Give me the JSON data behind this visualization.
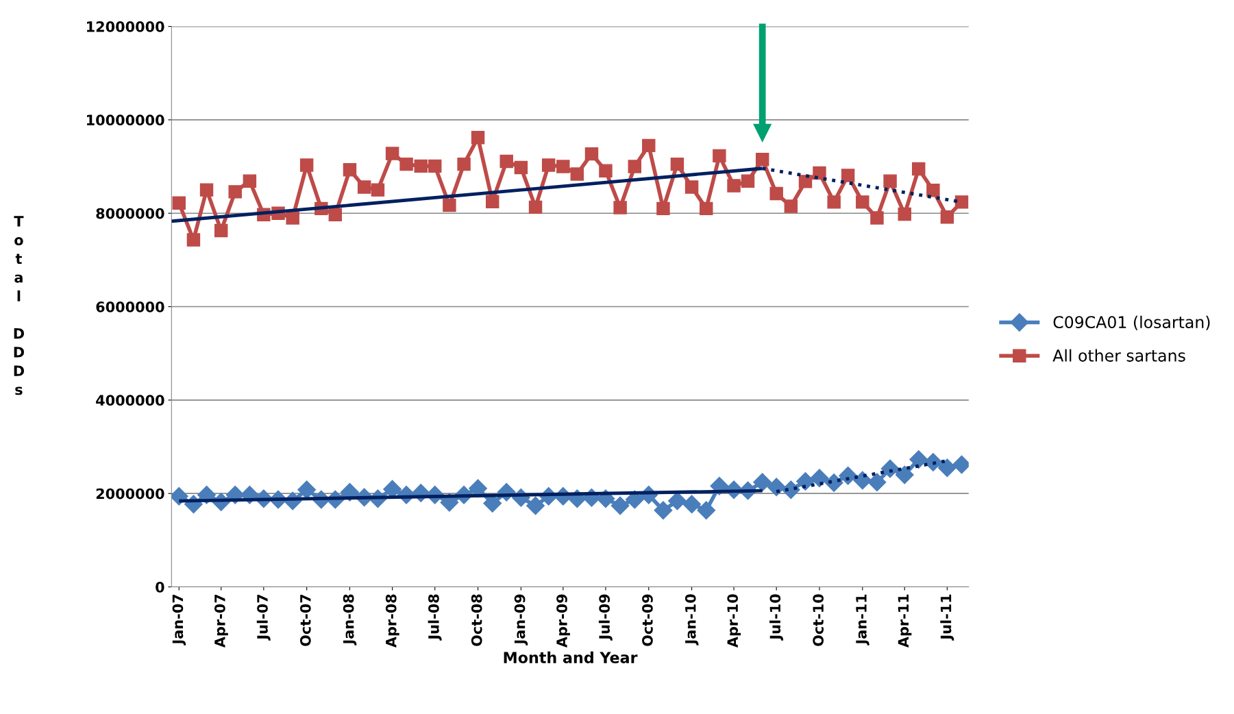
{
  "chart_data": {
    "type": "line",
    "xlabel": "Month and Year",
    "ylabel": "Total DDDs",
    "x": [
      "2007-01",
      "2007-02",
      "2007-03",
      "2007-04",
      "2007-05",
      "2007-06",
      "2007-07",
      "2007-08",
      "2007-09",
      "2007-10",
      "2007-11",
      "2007-12",
      "2008-01",
      "2008-02",
      "2008-03",
      "2008-04",
      "2008-05",
      "2008-06",
      "2008-07",
      "2008-08",
      "2008-09",
      "2008-10",
      "2008-11",
      "2008-12",
      "2009-01",
      "2009-02",
      "2009-03",
      "2009-04",
      "2009-05",
      "2009-06",
      "2009-07",
      "2009-08",
      "2009-09",
      "2009-10",
      "2009-11",
      "2009-12",
      "2010-01",
      "2010-02",
      "2010-03",
      "2010-04",
      "2010-05",
      "2010-06",
      "2010-07",
      "2010-08",
      "2010-09",
      "2010-10",
      "2010-11",
      "2010-12",
      "2011-01",
      "2011-02",
      "2011-03",
      "2011-04",
      "2011-05",
      "2011-06",
      "2011-07",
      "2011-08"
    ],
    "series": [
      {
        "name": "C09CA01 (losartan)",
        "color": "#4a7ebb",
        "marker": "diamond",
        "values": [
          1940000,
          1770000,
          1970000,
          1820000,
          1970000,
          1970000,
          1890000,
          1870000,
          1840000,
          2080000,
          1870000,
          1870000,
          2030000,
          1920000,
          1890000,
          2090000,
          1970000,
          2010000,
          1970000,
          1810000,
          1970000,
          2110000,
          1790000,
          2030000,
          1910000,
          1740000,
          1940000,
          1940000,
          1890000,
          1910000,
          1890000,
          1740000,
          1870000,
          1970000,
          1640000,
          1840000,
          1770000,
          1640000,
          2160000,
          2080000,
          2060000,
          2240000,
          2140000,
          2080000,
          2260000,
          2330000,
          2230000,
          2380000,
          2280000,
          2240000,
          2530000,
          2400000,
          2730000,
          2670000,
          2550000,
          2620000
        ]
      },
      {
        "name": "All other sartans",
        "color": "#be4b48",
        "marker": "square",
        "values": [
          8220000,
          7430000,
          8500000,
          7630000,
          8460000,
          8690000,
          7970000,
          8000000,
          7900000,
          9030000,
          8100000,
          7970000,
          8930000,
          8560000,
          8500000,
          9280000,
          9050000,
          9010000,
          9010000,
          8170000,
          9050000,
          9620000,
          8250000,
          9110000,
          8980000,
          8130000,
          9030000,
          9000000,
          8840000,
          9270000,
          8910000,
          8120000,
          9000000,
          9450000,
          8100000,
          9050000,
          8560000,
          8100000,
          9230000,
          8590000,
          8690000,
          9150000,
          8420000,
          8150000,
          8680000,
          8860000,
          8240000,
          8810000,
          8240000,
          7900000,
          8690000,
          7980000,
          8950000,
          8490000,
          7920000,
          8240000
        ]
      },
      {
        "type": "line",
        "color": "#002060",
        "line_style": "solid",
        "marker": "none",
        "x": [
          "2006-12-16",
          "2010-06"
        ],
        "values": [
          7830000,
          8960000
        ]
      },
      {
        "type": "line",
        "color": "#002060",
        "line_style": "dotted",
        "marker": "none",
        "x": [
          "2010-06",
          "2011-08"
        ],
        "values": [
          8960000,
          8240000
        ]
      },
      {
        "type": "line",
        "color": "#002060",
        "line_style": "solid",
        "marker": "none",
        "x": [
          "2007-01",
          "2010-06"
        ],
        "values": [
          1840000,
          2060000
        ]
      },
      {
        "type": "line",
        "color": "#002060",
        "line_style": "dotted",
        "marker": "none",
        "x": [
          "2010-07",
          "2011-07"
        ],
        "values": [
          2040000,
          2700000
        ]
      }
    ],
    "xlim": [
      "2006-12-16",
      "2011-08-16"
    ],
    "xticks": [
      {
        "value": "2007-01",
        "label": "Jan-07"
      },
      {
        "value": "2007-04",
        "label": "Apr-07"
      },
      {
        "value": "2007-07",
        "label": "Jul-07"
      },
      {
        "value": "2007-10",
        "label": "Oct-07"
      },
      {
        "value": "2008-01",
        "label": "Jan-08"
      },
      {
        "value": "2008-04",
        "label": "Apr-08"
      },
      {
        "value": "2008-07",
        "label": "Jul-08"
      },
      {
        "value": "2008-10",
        "label": "Oct-08"
      },
      {
        "value": "2009-01",
        "label": "Jan-09"
      },
      {
        "value": "2009-04",
        "label": "Apr-09"
      },
      {
        "value": "2009-07",
        "label": "Jul-09"
      },
      {
        "value": "2009-10",
        "label": "Oct-09"
      },
      {
        "value": "2010-01",
        "label": "Jan-10"
      },
      {
        "value": "2010-04",
        "label": "Apr-10"
      },
      {
        "value": "2010-07",
        "label": "Jul-10"
      },
      {
        "value": "2010-10",
        "label": "Oct-10"
      },
      {
        "value": "2011-01",
        "label": "Jan-11"
      },
      {
        "value": "2011-04",
        "label": "Apr-11"
      },
      {
        "value": "2011-07",
        "label": "Jul-11"
      }
    ],
    "ylim": [
      0,
      12000000
    ],
    "yticks": [
      0,
      2000000,
      4000000,
      6000000,
      8000000,
      10000000,
      12000000
    ],
    "grid": "y",
    "legend": "right"
  }
}
